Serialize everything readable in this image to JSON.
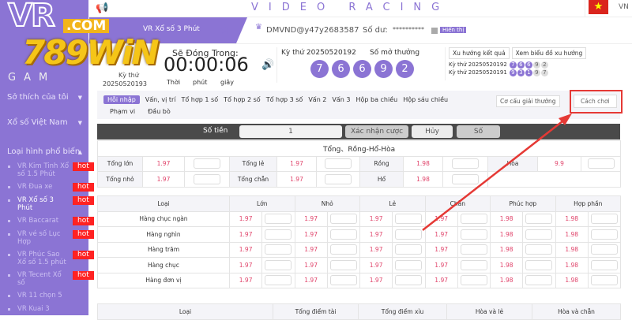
{
  "logo": {
    "vr": "VR",
    "gaming": "GAMING",
    "watermark": "789WIN",
    "watermark_domain": ".COM"
  },
  "sidebar": {
    "sections": [
      "Sở thích của tôi",
      "Xổ số Việt Nam",
      "Loại hình phổ biến"
    ],
    "items": [
      {
        "label": "VR Kim Tinh Xổ số 1.5 Phút",
        "hot": "hot"
      },
      {
        "label": "VR Đua xe",
        "hot": "hot"
      },
      {
        "label": "VR Xổ số 3 Phút",
        "hot": "hot",
        "active": true
      },
      {
        "label": "VR Baccarat",
        "hot": "hot"
      },
      {
        "label": "VR vé số Lục Hợp",
        "hot": "hot"
      },
      {
        "label": "VR Phúc Sao Xổ số 1.5 phút",
        "hot": "hot"
      },
      {
        "label": "VR Tecent Xổ số",
        "hot": "hot"
      },
      {
        "label": "VR 11 chọn 5"
      },
      {
        "label": "VR Kuai 3"
      }
    ]
  },
  "header": {
    "brand": "VIDEO RACING",
    "lang": "VN",
    "game_title": "VR Xổ số 3 Phút",
    "user": "DMVND@y47y2683587",
    "balance_label": "Số dư:",
    "balance": "**********",
    "show_label": "Hiển thị"
  },
  "draw": {
    "current_label": "Kỳ thứ",
    "current": "20250520193",
    "close_label": "Sẽ Đóng Trong:",
    "countdown": "00:00:06",
    "units": [
      "Thời",
      "phút",
      "giây"
    ],
    "last_label": "Kỳ thứ 20250520192",
    "result_label": "Số mở thưởng",
    "result": [
      "7",
      "6",
      "6",
      "9",
      "2"
    ],
    "trend_btn": "Xu hướng kết quả",
    "chart_btn": "Xem biểu đồ xu hướng",
    "history": [
      {
        "label": "Kỳ thứ 20250520192",
        "balls": [
          "7",
          "6",
          "6",
          "9",
          "2"
        ]
      },
      {
        "label": "Kỳ thứ 20250520191",
        "balls": [
          "9",
          "3",
          "1",
          "9",
          "7"
        ]
      }
    ]
  },
  "tabs": [
    "Hỗi nhập",
    "Vấn, vị trí",
    "Tổ hợp 1 số",
    "Tổ hợp 2 số",
    "Tổ hợp 3 số",
    "Vấn 2",
    "Vấn 3",
    "Hộp ba chiều",
    "Hộp sáu chiều",
    "Phạm vi",
    "Đầu bò"
  ],
  "tab_buttons": {
    "prize": "Cơ cấu giải thưởng",
    "howto": "Cách chơi"
  },
  "betbar": {
    "amount_label": "Số tiền",
    "amount": "1",
    "confirm": "Xác nhận cược",
    "cancel": "Hủy",
    "slip": "Số"
  },
  "sum_table": {
    "title": "Tổng、Rồng-Hổ-Hòa",
    "rows": [
      [
        [
          "Tổng lớn",
          "1.97"
        ],
        [
          "Tổng lẻ",
          "1.97"
        ],
        [
          "Rồng",
          "1.98"
        ],
        [
          "Hòa",
          "9.9"
        ]
      ],
      [
        [
          "Tổng nhỏ",
          "1.97"
        ],
        [
          "Tổng chẵn",
          "1.97"
        ],
        [
          "Hổ",
          "1.98"
        ]
      ]
    ]
  },
  "pos_table": {
    "headers": [
      "Loại",
      "Lớn",
      "Nhỏ",
      "Lẻ",
      "Chẵn",
      "Phúc hợp",
      "Hợp phần"
    ],
    "rows": [
      [
        "Hàng chục ngàn",
        "1.97",
        "1.97",
        "1.97",
        "1.97",
        "1.98",
        "1.98"
      ],
      [
        "Hàng nghìn",
        "1.97",
        "1.97",
        "1.97",
        "1.97",
        "1.98",
        "1.98"
      ],
      [
        "Hàng trăm",
        "1.97",
        "1.97",
        "1.97",
        "1.97",
        "1.98",
        "1.98"
      ],
      [
        "Hàng chục",
        "1.97",
        "1.97",
        "1.97",
        "1.97",
        "1.98",
        "1.98"
      ],
      [
        "Hàng đơn vị",
        "1.97",
        "1.97",
        "1.97",
        "1.97",
        "1.98",
        "1.98"
      ]
    ]
  },
  "total_table": {
    "headers": [
      "Loại",
      "Tổng điểm tài",
      "Tổng điểm xỉu",
      "Hòa và lẻ",
      "Hòa và chẵn"
    ]
  },
  "colors": {
    "accent": "#8b74d4",
    "odds": "#e0436a",
    "hot": "#ff2222",
    "annotation": "#e53935"
  }
}
